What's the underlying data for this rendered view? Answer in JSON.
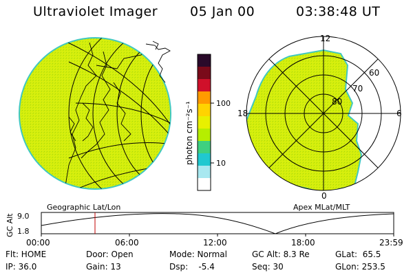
{
  "header": {
    "instrument": "Ultraviolet Imager",
    "date": "05 Jan 00",
    "time": "03:38:48 UT"
  },
  "colorbar": {
    "label": "photon cm⁻²s⁻¹",
    "ticks": [
      "100",
      "10"
    ],
    "colors": [
      "#2a0a2a",
      "#7a0a1a",
      "#d0102a",
      "#ff9a00",
      "#ffd300",
      "#e8f000",
      "#b6ee00",
      "#3ed080",
      "#20c8d0",
      "#a8e8f0",
      "#ffffff"
    ]
  },
  "geo_panel": {
    "caption": "Geographic Lat/Lon"
  },
  "apex_panel": {
    "caption": "Apex MLat/MLT",
    "mlt_labels": {
      "top": "12",
      "left": "18",
      "right": "6",
      "bottom": "0"
    },
    "lat_labels": [
      "60",
      "70",
      "80"
    ]
  },
  "gc_alt_plot": {
    "ylabel": "GC Alt",
    "yticks": [
      "9.0",
      "1.8"
    ],
    "xticks": [
      "00:00",
      "06:00",
      "12:00",
      "18:00",
      "23:59"
    ]
  },
  "status": {
    "flt": "Flt: HOME",
    "ip": "IP: 36.0",
    "door": "Door: Open",
    "gain": "Gain: 13",
    "mode": "Mode: Normal",
    "dsp": "Dsp:    -5.4",
    "gc_alt": "GC Alt: 8.3 Re",
    "seq": "Seq: 30",
    "glat": "GLat:  65.5",
    "glon": "GLon: 253.5"
  },
  "colors": {
    "image_fill": "#d4ee10",
    "image_edge": "#40c8c0",
    "marker": "#c00000"
  }
}
